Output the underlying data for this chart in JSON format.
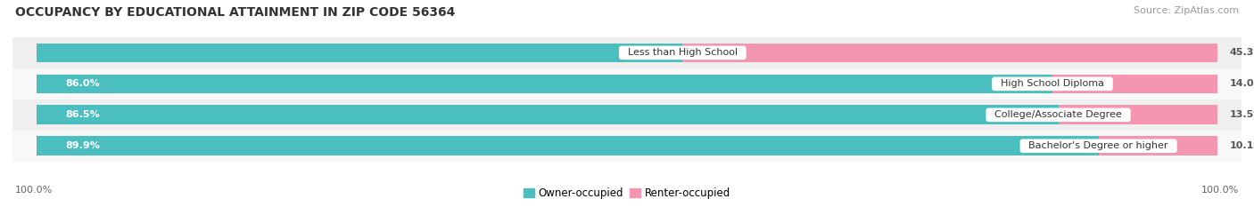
{
  "title": "OCCUPANCY BY EDUCATIONAL ATTAINMENT IN ZIP CODE 56364",
  "source": "Source: ZipAtlas.com",
  "categories": [
    "Less than High School",
    "High School Diploma",
    "College/Associate Degree",
    "Bachelor's Degree or higher"
  ],
  "owner_pct": [
    54.7,
    86.0,
    86.5,
    89.9
  ],
  "renter_pct": [
    45.3,
    14.0,
    13.5,
    10.1
  ],
  "owner_color": "#4bbfc0",
  "renter_color": "#f496b0",
  "row_bg_even": "#f5f5f5",
  "row_bg_odd": "#e8e8e8",
  "title_fontsize": 10,
  "source_fontsize": 8,
  "bar_label_fontsize": 8,
  "cat_label_fontsize": 8,
  "axis_label_fontsize": 8,
  "legend_fontsize": 8.5,
  "bar_height": 0.62,
  "axis_label_left": "100.0%",
  "axis_label_right": "100.0%"
}
